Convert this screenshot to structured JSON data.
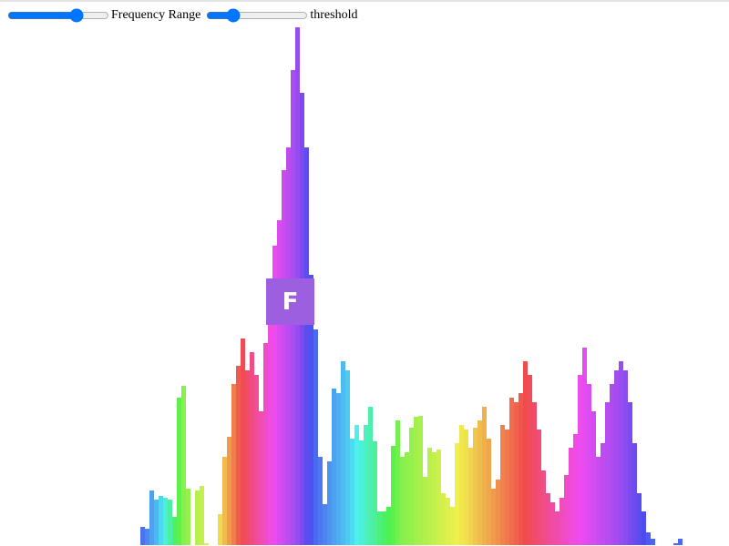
{
  "controls": [
    {
      "label": "Frequency Range",
      "min": 0,
      "max": 100,
      "value": 71
    },
    {
      "label": "threshold",
      "min": 0,
      "max": 100,
      "value": 23
    }
  ],
  "spectrum": {
    "values": [
      20,
      18,
      60,
      50,
      54,
      52,
      50,
      31,
      162,
      175,
      62,
      0,
      60,
      65,
      2,
      0,
      0,
      34,
      97,
      119,
      177,
      197,
      227,
      192,
      212,
      187,
      147,
      222,
      257,
      329,
      357,
      412,
      437,
      522,
      569,
      497,
      437,
      297,
      237,
      97,
      45,
      92,
      172,
      167,
      202,
      192,
      117,
      132,
      115,
      132,
      152,
      114,
      37,
      37,
      42,
      109,
      137,
      97,
      102,
      129,
      141,
      142,
      75,
      107,
      102,
      105,
      57,
      52,
      42,
      112,
      132,
      127,
      107,
      129,
      137,
      152,
      117,
      62,
      72,
      132,
      127,
      162,
      157,
      167,
      202,
      187,
      157,
      127,
      82,
      57,
      47,
      37,
      52,
      77,
      107,
      122,
      187,
      217,
      177,
      147,
      97,
      112,
      157,
      177,
      192,
      202,
      192,
      157,
      112,
      57,
      37,
      14,
      7,
      0,
      0,
      0,
      0,
      2,
      7
    ]
  },
  "logo": {
    "text": "F"
  }
}
